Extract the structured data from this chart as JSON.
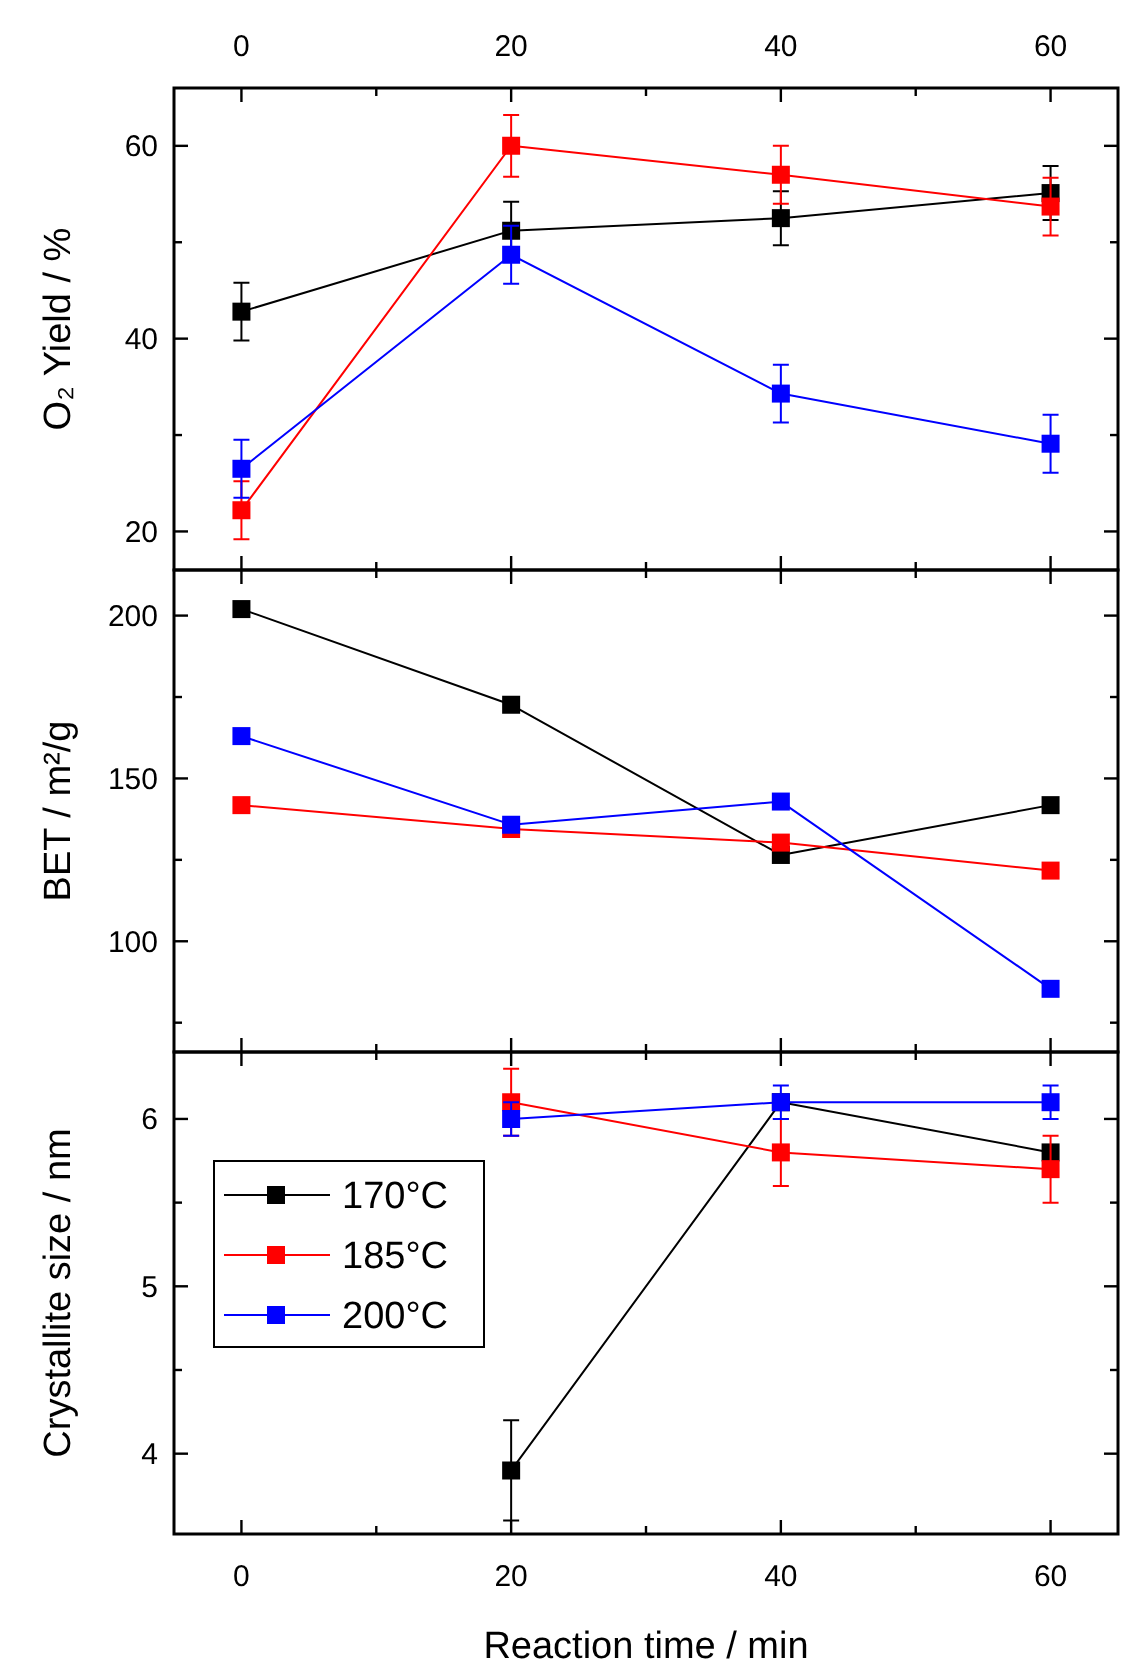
{
  "chart_data": [
    {
      "type": "line",
      "ylabel": "O₂ Yield / %",
      "x": [
        0,
        20,
        40,
        60
      ],
      "xlim": [
        -5,
        65
      ],
      "xticks": [
        0,
        {
          "value": 10,
          "label": null
        },
        20,
        {
          "value": 30,
          "label": null
        },
        40,
        {
          "value": 50,
          "label": null
        },
        60
      ],
      "x2lim": [
        -5,
        65
      ],
      "x2ticks": [
        0,
        {
          "value": 10,
          "label": null
        },
        20,
        {
          "value": 30,
          "label": null
        },
        40,
        {
          "value": 50,
          "label": null
        },
        60
      ],
      "ylim": [
        16,
        66
      ],
      "yticks": [
        20,
        {
          "value": 30,
          "label": null
        },
        40,
        {
          "value": 50,
          "label": null
        },
        60
      ],
      "tick_labels": "y",
      "marker": "square",
      "line_style": "solid",
      "series": [
        {
          "color": "#000000",
          "values": [
            42.8,
            51.2,
            52.5,
            55.1
          ],
          "errors": [
            3,
            3,
            2.8,
            2.8
          ]
        },
        {
          "color": "#ff0000",
          "values": [
            22.2,
            60,
            57,
            53.7
          ],
          "errors": [
            3,
            3.2,
            3,
            3
          ]
        },
        {
          "color": "#0000ff",
          "values": [
            26.5,
            48.7,
            34.3,
            29.1
          ],
          "errors": [
            3,
            3,
            3,
            3
          ]
        }
      ]
    },
    {
      "type": "line",
      "ylabel": "BET / m²/g",
      "x": [
        0,
        20,
        40,
        60
      ],
      "xlim": [
        -5,
        65
      ],
      "xticks": [
        0,
        {
          "value": 10,
          "label": null
        },
        20,
        {
          "value": 30,
          "label": null
        },
        40,
        {
          "value": 50,
          "label": null
        },
        60
      ],
      "ylim": [
        66,
        214
      ],
      "yticks": [
        {
          "value": 75,
          "label": null
        },
        100,
        {
          "value": 125,
          "label": null
        },
        150,
        {
          "value": 175,
          "label": null
        },
        200
      ],
      "tick_labels": "y",
      "marker": "square",
      "line_style": "solid",
      "series": [
        {
          "color": "#000000",
          "values": [
            202,
            172.6,
            126.5,
            141.8
          ]
        },
        {
          "color": "#ff0000",
          "values": [
            141.8,
            134.5,
            130.3,
            121.7
          ]
        },
        {
          "color": "#0000ff",
          "values": [
            163,
            135.8,
            142.9,
            85.4
          ]
        }
      ]
    },
    {
      "type": "line",
      "ylabel": "Crystallite size / nm",
      "xlabel": "Reaction time / min",
      "x": [
        20,
        40,
        60
      ],
      "xlim": [
        -5,
        65
      ],
      "xticks": [
        0,
        {
          "value": 10,
          "label": null
        },
        20,
        {
          "value": 30,
          "label": null
        },
        40,
        {
          "value": 50,
          "label": null
        },
        60
      ],
      "ylim": [
        3.52,
        6.4
      ],
      "yticks": [
        4,
        {
          "value": 4.5,
          "label": null
        },
        5,
        {
          "value": 5.5,
          "label": null
        },
        6
      ],
      "marker": "square",
      "line_style": "solid",
      "legend": "left",
      "series": [
        {
          "name": "170°C",
          "color": "#000000",
          "values": [
            3.9,
            6.1,
            5.8
          ],
          "errors": [
            0.3,
            null,
            null
          ]
        },
        {
          "name": "185°C",
          "color": "#ff0000",
          "values": [
            6.1,
            5.8,
            5.7
          ],
          "errors": [
            0.2,
            0.2,
            0.2
          ]
        },
        {
          "name": "200°C",
          "color": "#0000ff",
          "values": [
            6.0,
            6.1,
            6.1
          ],
          "errors": [
            0.1,
            0.1,
            0.1
          ]
        }
      ]
    }
  ]
}
